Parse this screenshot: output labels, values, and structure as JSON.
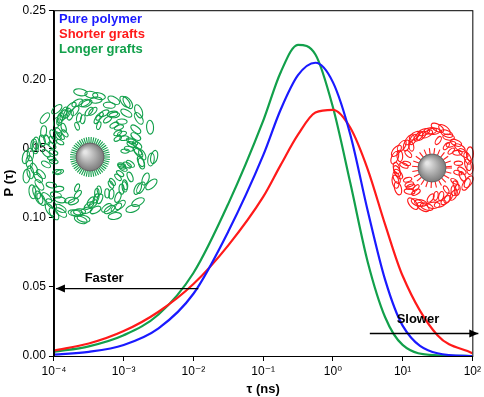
{
  "chart_data": {
    "type": "line",
    "x_label": "τ (ns)",
    "y_label": "P (τ)",
    "x": [
      0.0001,
      0.000316,
      0.001,
      0.00316,
      0.01,
      0.0316,
      0.1,
      0.178,
      0.316,
      0.562,
      1,
      1.78,
      3.16,
      5.62,
      10,
      31.6,
      100
    ],
    "series": [
      {
        "name": "Pure polymer",
        "color": "#1a1aff",
        "values": [
          0.001,
          0.003,
          0.008,
          0.02,
          0.045,
          0.09,
          0.145,
          0.178,
          0.203,
          0.212,
          0.198,
          0.16,
          0.105,
          0.055,
          0.022,
          0.002,
          0
        ]
      },
      {
        "name": "Shorter grafts",
        "color": "#ff1a1a",
        "values": [
          0.004,
          0.009,
          0.018,
          0.032,
          0.052,
          0.08,
          0.115,
          0.138,
          0.16,
          0.176,
          0.178,
          0.165,
          0.135,
          0.095,
          0.058,
          0.015,
          0.002
        ]
      },
      {
        "name": "Longer grafts",
        "color": "#12a04b",
        "values": [
          0.003,
          0.007,
          0.015,
          0.03,
          0.06,
          0.11,
          0.17,
          0.205,
          0.225,
          0.218,
          0.18,
          0.125,
          0.068,
          0.028,
          0.008,
          0.0005,
          0
        ]
      }
    ],
    "xlim": [
      0.0001,
      100
    ],
    "ylim": [
      0,
      0.25
    ],
    "xticks": [
      {
        "value": 0.0001,
        "label": "10⁻⁴"
      },
      {
        "value": 0.001,
        "label": "10⁻³"
      },
      {
        "value": 0.01,
        "label": "10⁻²"
      },
      {
        "value": 0.1,
        "label": "10⁻¹"
      },
      {
        "value": 1,
        "label": "10⁰"
      },
      {
        "value": 10,
        "label": "10¹"
      },
      {
        "value": 100,
        "label": "10²"
      }
    ],
    "yticks": [
      {
        "value": 0,
        "label": "0.00"
      },
      {
        "value": 0.05,
        "label": "0.05"
      },
      {
        "value": 0.1,
        "label": "0.10"
      },
      {
        "value": 0.15,
        "label": "0.15"
      },
      {
        "value": 0.2,
        "label": "0.20"
      },
      {
        "value": 0.25,
        "label": "0.25"
      }
    ],
    "log": "x",
    "grid": false,
    "legend": "upper left",
    "annotations": [
      "Faster",
      "Slower"
    ]
  }
}
